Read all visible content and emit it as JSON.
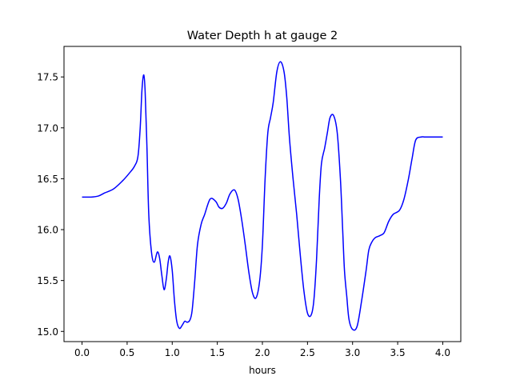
{
  "chart_data": {
    "type": "line",
    "title": "Water Depth h at gauge 2",
    "xlabel": "hours",
    "ylabel": "",
    "xlim": [
      -0.2,
      4.2
    ],
    "ylim": [
      14.9,
      17.8
    ],
    "xticks": [
      0.0,
      0.5,
      1.0,
      1.5,
      2.0,
      2.5,
      3.0,
      3.5,
      4.0
    ],
    "xtick_labels": [
      "0.0",
      "0.5",
      "1.0",
      "1.5",
      "2.0",
      "2.5",
      "3.0",
      "3.5",
      "4.0"
    ],
    "yticks": [
      15.0,
      15.5,
      16.0,
      16.5,
      17.0,
      17.5
    ],
    "ytick_labels": [
      "15.0",
      "15.5",
      "16.0",
      "16.5",
      "17.0",
      "17.5"
    ],
    "grid": false,
    "legend": "none",
    "series": [
      {
        "color": "#0000ff",
        "x": [
          0.0,
          0.1,
          0.18,
          0.25,
          0.35,
          0.45,
          0.52,
          0.58,
          0.62,
          0.645,
          0.665,
          0.685,
          0.7,
          0.72,
          0.74,
          0.77,
          0.8,
          0.835,
          0.86,
          0.885,
          0.91,
          0.935,
          0.955,
          0.975,
          1.0,
          1.025,
          1.05,
          1.08,
          1.11,
          1.14,
          1.165,
          1.195,
          1.22,
          1.25,
          1.28,
          1.32,
          1.36,
          1.42,
          1.48,
          1.52,
          1.56,
          1.6,
          1.64,
          1.69,
          1.73,
          1.77,
          1.81,
          1.85,
          1.89,
          1.93,
          1.97,
          2.0,
          2.03,
          2.06,
          2.09,
          2.12,
          2.16,
          2.2,
          2.24,
          2.27,
          2.3,
          2.34,
          2.38,
          2.42,
          2.46,
          2.5,
          2.54,
          2.57,
          2.6,
          2.63,
          2.655,
          2.69,
          2.72,
          2.75,
          2.79,
          2.83,
          2.865,
          2.89,
          2.91,
          2.935,
          2.96,
          3.0,
          3.05,
          3.1,
          3.15,
          3.18,
          3.215,
          3.25,
          3.3,
          3.35,
          3.4,
          3.45,
          3.52,
          3.57,
          3.62,
          3.66,
          3.7,
          3.76,
          3.8,
          3.84,
          3.88,
          3.92,
          3.96,
          4.0
        ],
        "y": [
          16.32,
          16.32,
          16.33,
          16.36,
          16.4,
          16.48,
          16.55,
          16.62,
          16.72,
          17.0,
          17.38,
          17.52,
          17.35,
          16.8,
          16.15,
          15.78,
          15.68,
          15.78,
          15.72,
          15.55,
          15.41,
          15.52,
          15.68,
          15.74,
          15.6,
          15.3,
          15.1,
          15.03,
          15.06,
          15.1,
          15.09,
          15.11,
          15.2,
          15.5,
          15.85,
          16.05,
          16.15,
          16.3,
          16.28,
          16.22,
          16.21,
          16.26,
          16.35,
          16.39,
          16.3,
          16.1,
          15.85,
          15.58,
          15.38,
          15.33,
          15.5,
          15.85,
          16.5,
          16.95,
          17.1,
          17.25,
          17.55,
          17.65,
          17.55,
          17.3,
          16.9,
          16.5,
          16.15,
          15.75,
          15.4,
          15.18,
          15.16,
          15.3,
          15.7,
          16.3,
          16.65,
          16.8,
          16.95,
          17.1,
          17.12,
          16.95,
          16.5,
          16.0,
          15.6,
          15.35,
          15.12,
          15.02,
          15.05,
          15.3,
          15.6,
          15.8,
          15.88,
          15.92,
          15.94,
          15.97,
          16.08,
          16.15,
          16.19,
          16.3,
          16.5,
          16.7,
          16.88,
          16.91,
          16.91,
          16.91,
          16.91,
          16.91,
          16.91,
          16.91
        ]
      }
    ]
  }
}
